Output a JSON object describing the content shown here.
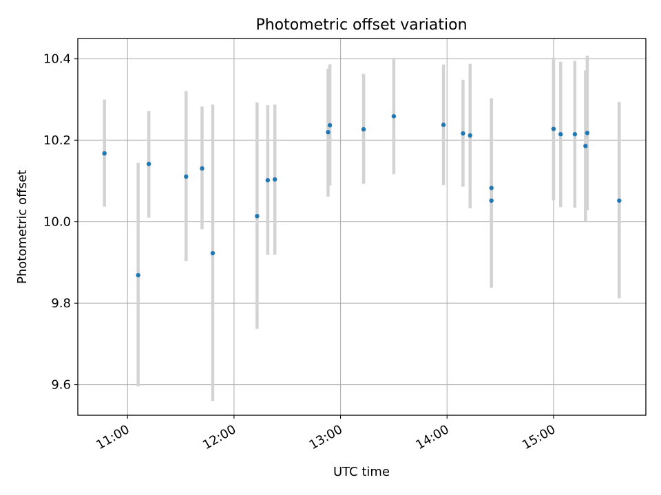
{
  "chart_data": {
    "type": "scatter",
    "title": "Photometric offset variation",
    "xlabel": "UTC time",
    "ylabel": "Photometric offset",
    "x_tick_labels": [
      "11:00",
      "12:00",
      "13:00",
      "14:00",
      "15:00"
    ],
    "y_tick_labels": [
      "9.6",
      "9.8",
      "10.0",
      "10.2",
      "10.4"
    ],
    "y_ticks": [
      9.6,
      9.8,
      10.0,
      10.2,
      10.4
    ],
    "x_ticks": [
      "11:00",
      "12:00",
      "13:00",
      "14:00",
      "15:00"
    ],
    "xlim": [
      "10:32",
      "15:52"
    ],
    "ylim": [
      9.525,
      10.45
    ],
    "grid": true,
    "colors": {
      "point": "#1f77b4",
      "errorbar": "#d3d3d3",
      "grid": "#b0b0b0"
    },
    "points": [
      {
        "x": "10:47",
        "y": 10.168,
        "low": 10.037,
        "high": 10.3
      },
      {
        "x": "11:06",
        "y": 9.869,
        "low": 9.596,
        "high": 10.145
      },
      {
        "x": "11:12",
        "y": 10.142,
        "low": 10.01,
        "high": 10.272
      },
      {
        "x": "11:33",
        "y": 10.111,
        "low": 9.903,
        "high": 10.321
      },
      {
        "x": "11:42",
        "y": 10.131,
        "low": 9.982,
        "high": 10.283
      },
      {
        "x": "11:48",
        "y": 9.923,
        "low": 9.56,
        "high": 10.288
      },
      {
        "x": "12:13",
        "y": 10.014,
        "low": 9.737,
        "high": 10.293
      },
      {
        "x": "12:19",
        "y": 10.102,
        "low": 9.919,
        "high": 10.286
      },
      {
        "x": "12:23",
        "y": 10.104,
        "low": 9.919,
        "high": 10.288
      },
      {
        "x": "12:53",
        "y": 10.22,
        "low": 10.062,
        "high": 10.376
      },
      {
        "x": "12:54",
        "y": 10.237,
        "low": 10.089,
        "high": 10.387
      },
      {
        "x": "13:13",
        "y": 10.227,
        "low": 10.093,
        "high": 10.363
      },
      {
        "x": "13:30",
        "y": 10.259,
        "low": 10.117,
        "high": 10.403
      },
      {
        "x": "13:58",
        "y": 10.238,
        "low": 10.09,
        "high": 10.386
      },
      {
        "x": "14:09",
        "y": 10.217,
        "low": 10.086,
        "high": 10.348
      },
      {
        "x": "14:13",
        "y": 10.212,
        "low": 10.033,
        "high": 10.388
      },
      {
        "x": "14:25",
        "y": 10.083,
        "low": 9.9,
        "high": 10.266
      },
      {
        "x": "14:25",
        "y": 10.052,
        "low": 9.838,
        "high": 10.303
      },
      {
        "x": "15:00",
        "y": 10.228,
        "low": 10.053,
        "high": 10.403
      },
      {
        "x": "15:04",
        "y": 10.215,
        "low": 10.036,
        "high": 10.393
      },
      {
        "x": "15:12",
        "y": 10.215,
        "low": 10.035,
        "high": 10.395
      },
      {
        "x": "15:18",
        "y": 10.186,
        "low": 10.0,
        "high": 10.372
      },
      {
        "x": "15:19",
        "y": 10.218,
        "low": 10.028,
        "high": 10.408
      },
      {
        "x": "15:37",
        "y": 10.052,
        "low": 9.812,
        "high": 10.294
      }
    ]
  }
}
